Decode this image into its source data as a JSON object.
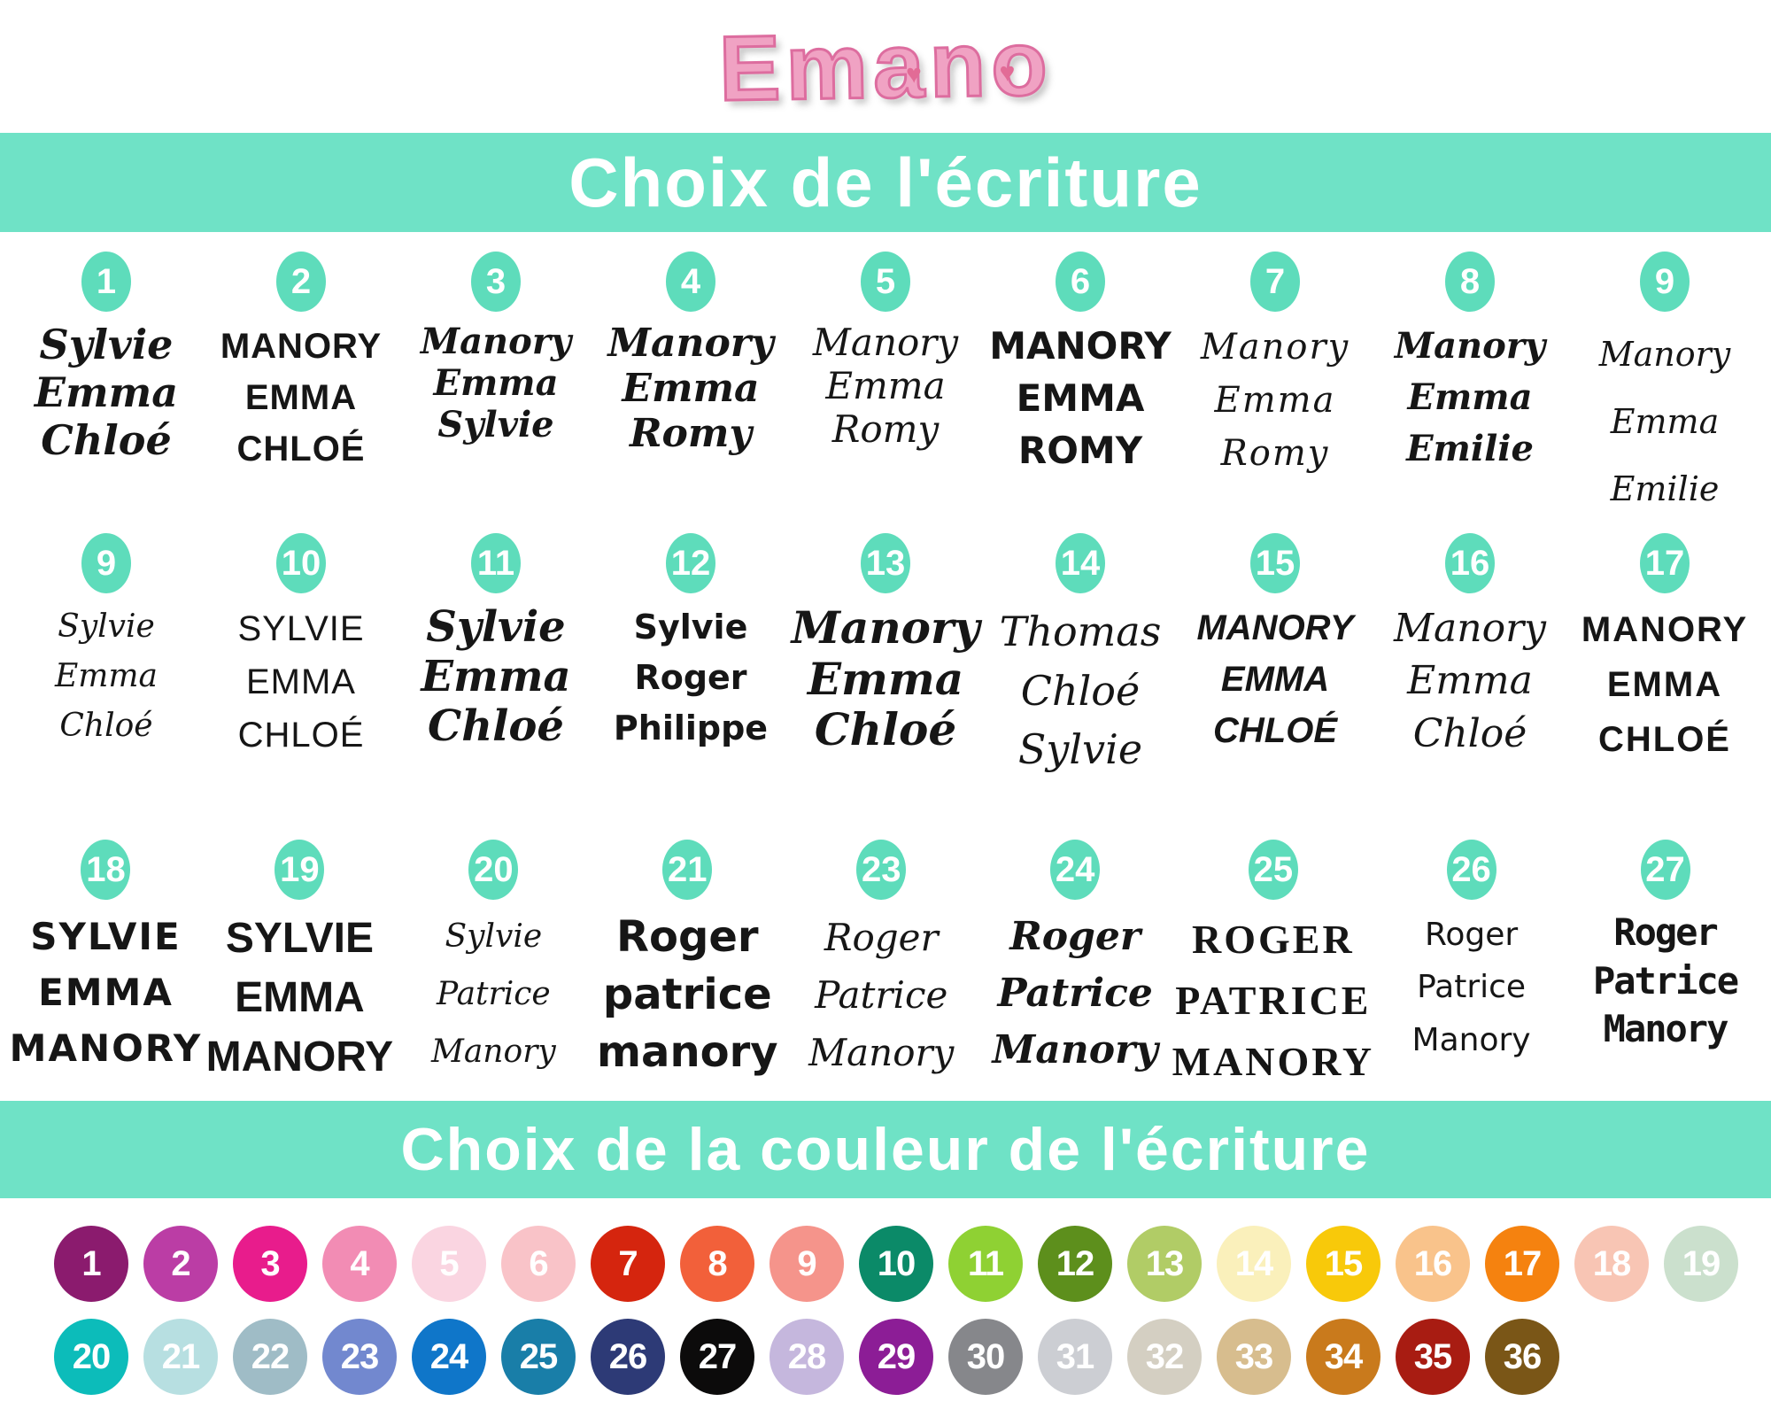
{
  "logo": {
    "text": "Emano"
  },
  "theme": {
    "band_color": "#6fe2c6",
    "badge_color": "#5edcbb",
    "logo_pink": "#f0a2c3",
    "logo_outline": "#dd6d9f",
    "ink": "#161616"
  },
  "sections": {
    "writing": {
      "title": "Choix de l'écriture"
    },
    "color": {
      "title": "Choix de la couleur de l'écriture"
    }
  },
  "font_choices": [
    {
      "number": "1",
      "lines": [
        "Sylvie",
        "Emma",
        "Chloé"
      ],
      "style": "script-calligraphy-bold"
    },
    {
      "number": "2",
      "lines": [
        "MANORY",
        "EMMA",
        "CHLOÉ"
      ],
      "style": "handwritten-caps-bold"
    },
    {
      "number": "3",
      "lines": [
        "Manory",
        "Emma",
        "Sylvie"
      ],
      "style": "brush-script"
    },
    {
      "number": "4",
      "lines": [
        "Manory",
        "Emma",
        "Romy"
      ],
      "style": "script-bold"
    },
    {
      "number": "5",
      "lines": [
        "Manory",
        "Emma",
        "Romy"
      ],
      "style": "script-elegant"
    },
    {
      "number": "6",
      "lines": [
        "MANORY",
        "EMMA",
        "ROMY"
      ],
      "style": "rounded-caps-bold"
    },
    {
      "number": "7",
      "lines": [
        "Manory",
        "Emma",
        "Romy"
      ],
      "style": "script-italic-light"
    },
    {
      "number": "8",
      "lines": [
        "Manory",
        "Emma",
        "Emilie"
      ],
      "style": "script-medium"
    },
    {
      "number": "9",
      "lines": [
        "Manory",
        "Emma",
        "Emilie"
      ],
      "style": "calligraphy-flourish"
    },
    {
      "number": "9",
      "lines": [
        "Sylvie",
        "Emma",
        "Chloé"
      ],
      "style": "monoline-script-thin"
    },
    {
      "number": "10",
      "lines": [
        "SYLVIE",
        "EMMA",
        "CHLOÉ"
      ],
      "style": "condensed-caps-thin"
    },
    {
      "number": "11",
      "lines": [
        "Sylvie",
        "Emma",
        "Chloé"
      ],
      "style": "script-fat"
    },
    {
      "number": "12",
      "lines": [
        "Sylvie",
        "Roger",
        "Philippe"
      ],
      "style": "handwritten-bold"
    },
    {
      "number": "13",
      "lines": [
        "Manory",
        "Emma",
        "Chloé"
      ],
      "style": "brush-script-swash"
    },
    {
      "number": "14",
      "lines": [
        "Thomas",
        "Chloé",
        "Sylvie"
      ],
      "style": "swirl-script"
    },
    {
      "number": "15",
      "lines": [
        "MANORY",
        "EMMA",
        "CHLOÉ"
      ],
      "style": "marker-caps"
    },
    {
      "number": "16",
      "lines": [
        "Manory",
        "Emma",
        "Chloé"
      ],
      "style": "flow-script"
    },
    {
      "number": "17",
      "lines": [
        "MANORY",
        "EMMA",
        "CHLOÉ"
      ],
      "style": "clean-caps-bold"
    },
    {
      "number": "18",
      "lines": [
        "SYLVIE",
        "EMMA",
        "MANORY"
      ],
      "style": "cartoon-caps"
    },
    {
      "number": "19",
      "lines": [
        "SYLVIE",
        "EMMA",
        "MANORY"
      ],
      "style": "block-caps-bold"
    },
    {
      "number": "20",
      "lines": [
        "Sylvie",
        "Patrice",
        "Manory"
      ],
      "style": "signature-script-thin"
    },
    {
      "number": "21",
      "lines": [
        "Roger",
        "patrice",
        "manory"
      ],
      "style": "bubble-lowercase-bold"
    },
    {
      "number": "23",
      "lines": [
        "Roger",
        "Patrice",
        "Manory"
      ],
      "style": "formal-script"
    },
    {
      "number": "24",
      "lines": [
        "Roger",
        "Patrice",
        "Manory"
      ],
      "style": "retro-script-bold"
    },
    {
      "number": "25",
      "lines": [
        "ROGER",
        "PATRICE",
        "MANORY"
      ],
      "style": "stencil-serif-caps"
    },
    {
      "number": "26",
      "lines": [
        "Roger",
        "Patrice",
        "Manory"
      ],
      "style": "handwritten-thin"
    },
    {
      "number": "27",
      "lines": [
        "Roger",
        "Patrice",
        "Manory"
      ],
      "style": "typewriter-serif"
    }
  ],
  "color_choices": [
    {
      "number": "1",
      "hex": "#8b1b6e"
    },
    {
      "number": "2",
      "hex": "#bb3da5"
    },
    {
      "number": "3",
      "hex": "#e81c8c"
    },
    {
      "number": "4",
      "hex": "#f28cb4"
    },
    {
      "number": "5",
      "hex": "#fad5e1"
    },
    {
      "number": "6",
      "hex": "#f9c3c8"
    },
    {
      "number": "7",
      "hex": "#d5250e"
    },
    {
      "number": "8",
      "hex": "#f2603a"
    },
    {
      "number": "9",
      "hex": "#f5948b"
    },
    {
      "number": "10",
      "hex": "#0b8a68"
    },
    {
      "number": "11",
      "hex": "#8fd133"
    },
    {
      "number": "12",
      "hex": "#5d8f1c"
    },
    {
      "number": "13",
      "hex": "#b1cc66"
    },
    {
      "number": "14",
      "hex": "#faf0bb"
    },
    {
      "number": "15",
      "hex": "#f8c90a"
    },
    {
      "number": "16",
      "hex": "#f9c38b"
    },
    {
      "number": "17",
      "hex": "#f5820f"
    },
    {
      "number": "18",
      "hex": "#f8c5b4"
    },
    {
      "number": "19",
      "hex": "#cbe0cd"
    },
    {
      "number": "20",
      "hex": "#0cbcba"
    },
    {
      "number": "21",
      "hex": "#b7dfe1"
    },
    {
      "number": "22",
      "hex": "#9fbcc6"
    },
    {
      "number": "23",
      "hex": "#7288cf"
    },
    {
      "number": "24",
      "hex": "#0f76c9"
    },
    {
      "number": "25",
      "hex": "#197ea8"
    },
    {
      "number": "26",
      "hex": "#2d3a76"
    },
    {
      "number": "27",
      "hex": "#0c0b0b"
    },
    {
      "number": "28",
      "hex": "#c5b7dd"
    },
    {
      "number": "29",
      "hex": "#8c1d96"
    },
    {
      "number": "30",
      "hex": "#86878b"
    },
    {
      "number": "31",
      "hex": "#ccced3"
    },
    {
      "number": "32",
      "hex": "#d4cfc2"
    },
    {
      "number": "33",
      "hex": "#d7bd8e"
    },
    {
      "number": "34",
      "hex": "#c97a1c"
    },
    {
      "number": "35",
      "hex": "#a81c12"
    },
    {
      "number": "36",
      "hex": "#7a5617"
    }
  ]
}
